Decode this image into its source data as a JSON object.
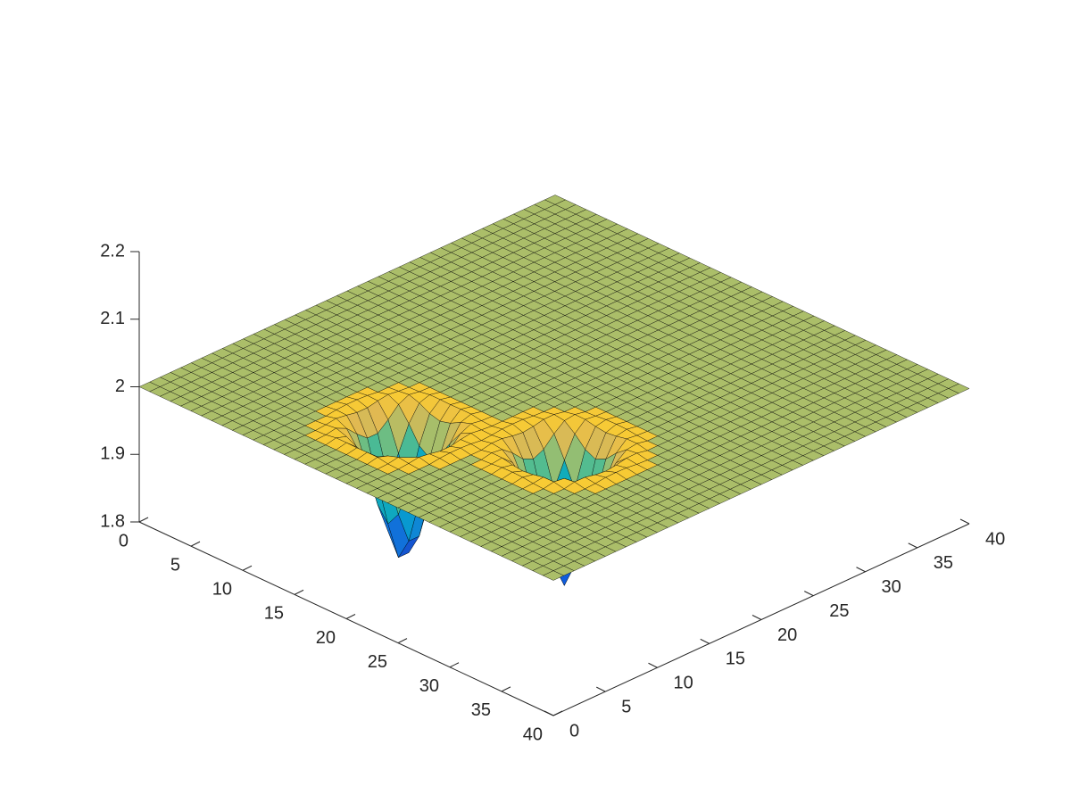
{
  "chart_data": {
    "type": "surface",
    "title": "",
    "xlabel": "",
    "ylabel": "",
    "zlabel": "",
    "xlim": [
      0,
      40
    ],
    "ylim": [
      0,
      40
    ],
    "zlim": [
      1.8,
      2.2
    ],
    "x_ticks": [
      0,
      5,
      10,
      15,
      20,
      25,
      30,
      35,
      40
    ],
    "y_ticks": [
      0,
      5,
      10,
      15,
      20,
      25,
      30,
      35,
      40
    ],
    "z_ticks": [
      1.8,
      1.9,
      2.0,
      2.1,
      2.2
    ],
    "z_tick_labels": [
      "1.8",
      "1.9",
      "2",
      "2.1",
      "2.2"
    ],
    "grid_size": [
      41,
      41
    ],
    "base_level": 2.0,
    "colormap": "parula",
    "edge_color": "#000000",
    "dimples": [
      {
        "center": [
          17,
          8.5
        ],
        "radius": 5.5,
        "depth": 0.2,
        "rim_height": 0.02
      },
      {
        "center": [
          27,
          14
        ],
        "radius": 5.5,
        "depth": 0.2,
        "rim_height": 0.02
      }
    ],
    "grid": false,
    "box": false
  }
}
